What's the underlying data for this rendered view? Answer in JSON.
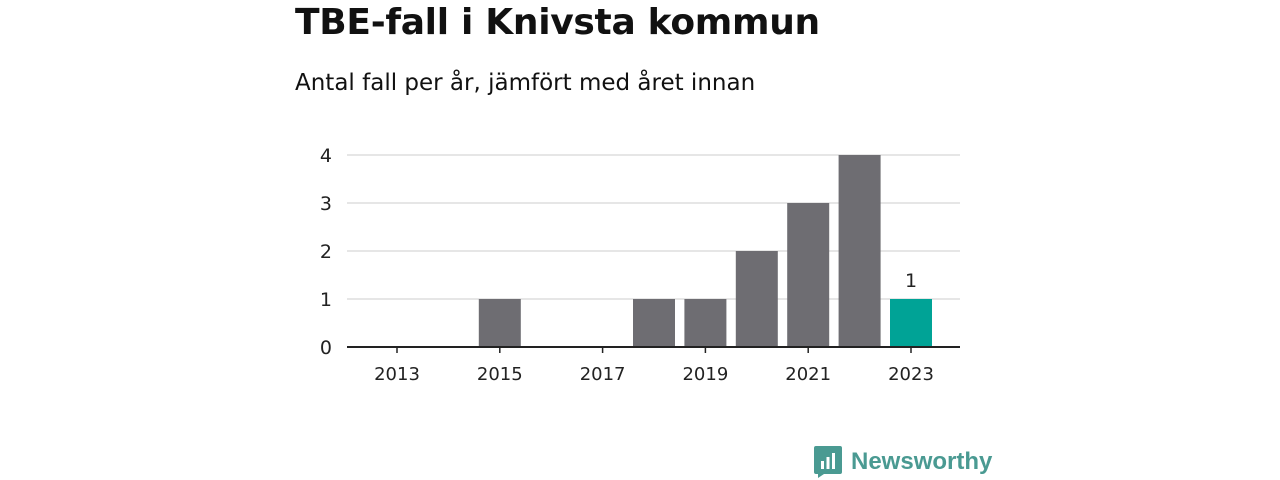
{
  "header": {
    "title": "TBE-fall i Knivsta kommun",
    "subtitle": "Antal fall per år, jämfört med året innan"
  },
  "brand": {
    "name": "Newsworthy",
    "color": "#4a9a92",
    "icon": "bar-chart-icon"
  },
  "colors": {
    "bar": "#6e6d72",
    "highlight": "#00a396",
    "grid": "#dddddd",
    "axis": "#222222"
  },
  "chart_data": {
    "type": "bar",
    "categories": [
      "2013",
      "2014",
      "2015",
      "2016",
      "2017",
      "2018",
      "2019",
      "2020",
      "2021",
      "2022",
      "2023"
    ],
    "values": [
      0,
      0,
      1,
      0,
      0,
      1,
      1,
      2,
      3,
      4,
      1
    ],
    "highlight_category": "2023",
    "data_labels": [
      {
        "category": "2023",
        "text": "1"
      }
    ],
    "xticks": [
      "2013",
      "2015",
      "2017",
      "2019",
      "2021",
      "2023"
    ],
    "yticks": [
      0,
      1,
      2,
      3,
      4
    ],
    "ylim": [
      0,
      4
    ],
    "xlabel": "",
    "ylabel": "",
    "grid": true,
    "legend": "none"
  }
}
